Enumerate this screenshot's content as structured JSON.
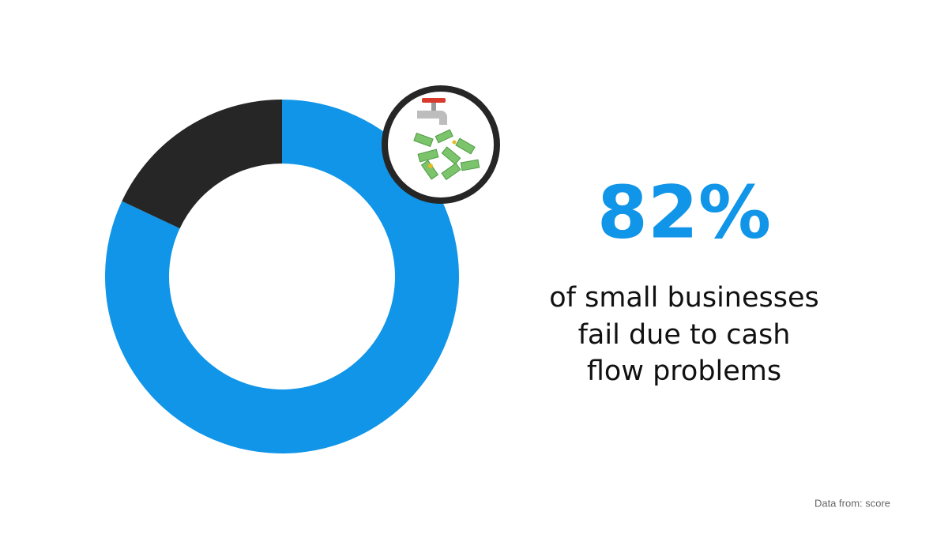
{
  "chart_data": {
    "type": "pie",
    "hole": true,
    "values": [
      82,
      18
    ],
    "colors": [
      "#1095e8",
      "#262626"
    ],
    "value_labels": [
      "82%",
      null
    ],
    "description_lines": [
      "of small businesses",
      "fail due to cash",
      "flow problems"
    ],
    "source": "Data from: score"
  }
}
